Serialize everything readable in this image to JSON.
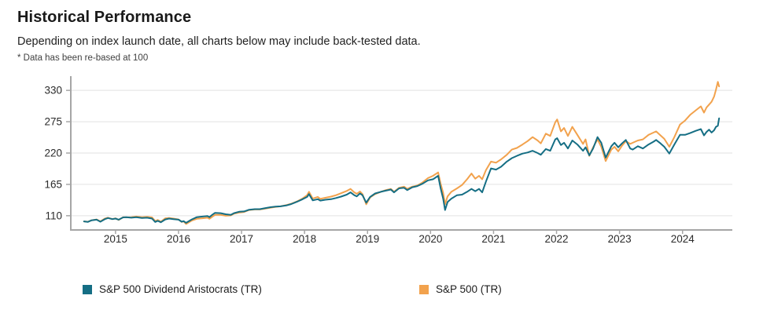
{
  "header": {
    "title": "Historical Performance",
    "subtitle": "Depending on index launch date, all charts below may include back-tested data.",
    "footnote": "* Data has been re-based at 100"
  },
  "chart_data": {
    "type": "line",
    "title": "Historical Performance",
    "xlabel": "",
    "ylabel": "",
    "grid": "horizontal",
    "legend_position": "bottom",
    "axis_color": "#a6a6a6",
    "grid_color": "#e2e2e2",
    "x_domain": [
      2014.29,
      2024.79
    ],
    "y_domain": [
      85,
      355
    ],
    "x_ticks": [
      2015,
      2016,
      2017,
      2018,
      2019,
      2020,
      2021,
      2022,
      2023,
      2024
    ],
    "x_tick_labels": [
      "2015",
      "2016",
      "2017",
      "2018",
      "2019",
      "2020",
      "2021",
      "2022",
      "2023",
      "2024"
    ],
    "y_ticks": [
      110,
      165,
      220,
      275,
      330
    ],
    "y_tick_labels": [
      "110",
      "165",
      "220",
      "275",
      "330"
    ],
    "x": [
      2014.5,
      2014.56,
      2014.62,
      2014.7,
      2014.76,
      2014.83,
      2014.88,
      2014.95,
      2015.0,
      2015.05,
      2015.12,
      2015.17,
      2015.25,
      2015.33,
      2015.42,
      2015.5,
      2015.58,
      2015.63,
      2015.67,
      2015.72,
      2015.79,
      2015.85,
      2015.92,
      2016.0,
      2016.05,
      2016.08,
      2016.12,
      2016.21,
      2016.29,
      2016.38,
      2016.46,
      2016.49,
      2016.54,
      2016.58,
      2016.67,
      2016.75,
      2016.83,
      2016.88,
      2016.96,
      2017.04,
      2017.12,
      2017.21,
      2017.29,
      2017.38,
      2017.46,
      2017.54,
      2017.62,
      2017.71,
      2017.79,
      2017.88,
      2017.96,
      2018.04,
      2018.07,
      2018.13,
      2018.21,
      2018.25,
      2018.33,
      2018.42,
      2018.5,
      2018.58,
      2018.67,
      2018.73,
      2018.79,
      2018.83,
      2018.88,
      2018.92,
      2018.98,
      2019.04,
      2019.12,
      2019.21,
      2019.29,
      2019.37,
      2019.42,
      2019.5,
      2019.58,
      2019.63,
      2019.71,
      2019.79,
      2019.87,
      2019.96,
      2020.04,
      2020.12,
      2020.16,
      2020.2,
      2020.23,
      2020.27,
      2020.33,
      2020.42,
      2020.5,
      2020.58,
      2020.65,
      2020.71,
      2020.77,
      2020.82,
      2020.88,
      2020.96,
      2021.04,
      2021.12,
      2021.21,
      2021.29,
      2021.37,
      2021.46,
      2021.54,
      2021.62,
      2021.7,
      2021.75,
      2021.83,
      2021.9,
      2021.98,
      2022.01,
      2022.07,
      2022.12,
      2022.18,
      2022.25,
      2022.33,
      2022.42,
      2022.46,
      2022.52,
      2022.58,
      2022.65,
      2022.71,
      2022.78,
      2022.87,
      2022.92,
      2022.98,
      2023.04,
      2023.1,
      2023.17,
      2023.21,
      2023.29,
      2023.37,
      2023.46,
      2023.54,
      2023.58,
      2023.65,
      2023.71,
      2023.79,
      2023.87,
      2023.96,
      2024.04,
      2024.12,
      2024.21,
      2024.29,
      2024.34,
      2024.38,
      2024.42,
      2024.46,
      2024.5,
      2024.53,
      2024.56,
      2024.58
    ],
    "series": [
      {
        "name": "S&P 500 Dividend Aristocrats (TR)",
        "color": "#156e84",
        "values": [
          100,
          99,
          102,
          103,
          99.5,
          104,
          106,
          104,
          105,
          103,
          107,
          107.5,
          106.5,
          107.5,
          106,
          106.5,
          105,
          99,
          101,
          98.5,
          103.5,
          105,
          104,
          103,
          99.5,
          100.5,
          97.5,
          103.5,
          107.5,
          108.5,
          109.5,
          107.5,
          112,
          115,
          114.5,
          112.5,
          111.5,
          114.5,
          117,
          117.5,
          120.5,
          121.5,
          121.5,
          123.5,
          125,
          126,
          126.5,
          128,
          130.5,
          134.5,
          138.5,
          143,
          148,
          137,
          139,
          136.5,
          138,
          139,
          141,
          143.5,
          147,
          151,
          146,
          144,
          149,
          146,
          133,
          143,
          149,
          152,
          154,
          156,
          151,
          158,
          159,
          155,
          160,
          162,
          166,
          172,
          174,
          180,
          158,
          140,
          120,
          134,
          140,
          146,
          147,
          152,
          157,
          153,
          157,
          151,
          170,
          193,
          191,
          196,
          205,
          211,
          215,
          219,
          221,
          224,
          220,
          217,
          227,
          224,
          244,
          246,
          234,
          238,
          228,
          242,
          235,
          224,
          230,
          216,
          228,
          248,
          238,
          212,
          232,
          238,
          230,
          237,
          243,
          228,
          226,
          232,
          228,
          235,
          240,
          243,
          237,
          231,
          219,
          235,
          252,
          252,
          255,
          259,
          262,
          251,
          257,
          261,
          256,
          260,
          266,
          268,
          281
        ]
      },
      {
        "name": "S&P 500 (TR)",
        "color": "#f2a24d",
        "values": [
          100,
          99.5,
          102,
          103.5,
          100,
          105,
          106.5,
          104,
          105.5,
          102.5,
          107.5,
          107,
          107.5,
          108.5,
          107.5,
          108,
          107,
          100.5,
          102.5,
          99.5,
          105.5,
          106,
          105,
          103.5,
          99,
          100,
          95.5,
          101.5,
          104.5,
          105.5,
          106.5,
          104.5,
          108.5,
          111.5,
          111.5,
          110,
          110.5,
          113.5,
          115.5,
          116.5,
          120,
          121,
          121,
          122.5,
          124,
          125.5,
          126.5,
          128.5,
          131,
          135,
          139.5,
          146,
          152,
          140,
          143,
          139.5,
          141.5,
          143.5,
          146,
          149.5,
          153.5,
          157,
          151,
          148.5,
          152.5,
          148,
          130,
          142,
          148,
          152,
          155,
          157,
          152,
          159,
          161,
          157,
          161,
          163,
          168,
          176,
          180,
          186,
          166,
          150,
          130,
          144,
          152,
          158,
          164,
          174,
          184,
          175,
          180,
          174,
          190,
          205,
          203,
          209,
          217,
          226,
          229,
          235,
          241,
          248,
          242,
          237,
          254,
          250,
          274,
          279,
          258,
          264,
          250,
          266,
          252,
          236,
          244,
          215,
          230,
          244,
          231,
          206,
          226,
          231,
          223,
          233,
          241,
          236,
          238,
          242,
          244,
          252,
          256,
          258,
          251,
          245,
          231,
          248,
          270,
          277,
          287,
          295,
          302,
          291,
          300,
          305,
          310,
          319,
          331,
          345,
          337
        ]
      }
    ]
  }
}
